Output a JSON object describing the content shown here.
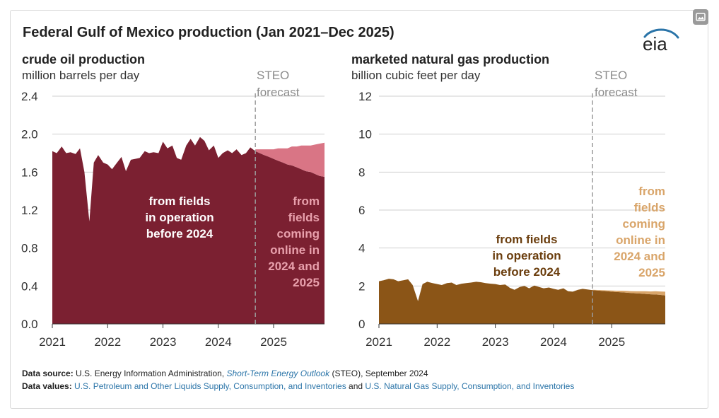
{
  "title": "Federal Gulf of Mexico production (Jan 2021–Dec 2025)",
  "logo_text": "eia",
  "forecast_label_line1": "STEO",
  "forecast_label_line2": "forecast",
  "footer": {
    "source_label": "Data source:",
    "source_text_1": "U.S. Energy Information Administration,",
    "source_italic": "Short-Term Energy Outlook",
    "source_text_2": "(STEO), September 2024",
    "values_label": "Data values:",
    "values_link_1": "U.S. Petroleum and Other Liquids Supply, Consumption, and Inventories",
    "values_and": "and",
    "values_link_2": "U.S. Natural Gas Supply, Consumption, and Inventories"
  },
  "colors": {
    "oil_existing": "#7b2031",
    "oil_new": "#d97585",
    "oil_new_text": "#e8a0ac",
    "gas_existing": "#8b5517",
    "gas_new": "#d9a56a",
    "gas_new_text": "#d9a56a",
    "gas_existing_text": "#6b3e0e",
    "grid": "#cfcfcf",
    "forecast_line": "#9b9b9b"
  },
  "chart_data": [
    {
      "type": "area",
      "title": "crude oil production",
      "ylabel": "million barrels per day",
      "ylim": [
        0,
        2.4
      ],
      "yticks": [
        "0.0",
        "0.4",
        "0.8",
        "1.2",
        "1.6",
        "2.0",
        "2.4"
      ],
      "ytick_values": [
        0,
        0.4,
        0.8,
        1.2,
        1.6,
        2.0,
        2.4
      ],
      "xlim": [
        2021.0,
        2026.0
      ],
      "xticks": [
        "2021",
        "2022",
        "2023",
        "2024",
        "2025"
      ],
      "xtick_values": [
        2021,
        2022,
        2023,
        2024,
        2025
      ],
      "forecast_start": 2024.67,
      "series": [
        {
          "name": "from fields in operation before 2024",
          "label_lines": [
            "from fields",
            "in operation",
            "before 2024"
          ],
          "x": [
            2021.0,
            2021.08,
            2021.17,
            2021.25,
            2021.33,
            2021.42,
            2021.5,
            2021.58,
            2021.67,
            2021.75,
            2021.83,
            2021.92,
            2022.0,
            2022.08,
            2022.17,
            2022.25,
            2022.33,
            2022.42,
            2022.5,
            2022.58,
            2022.67,
            2022.75,
            2022.83,
            2022.92,
            2023.0,
            2023.08,
            2023.17,
            2023.25,
            2023.33,
            2023.42,
            2023.5,
            2023.58,
            2023.67,
            2023.75,
            2023.83,
            2023.92,
            2024.0,
            2024.08,
            2024.17,
            2024.25,
            2024.33,
            2024.42,
            2024.5,
            2024.58,
            2024.67,
            2024.75,
            2024.83,
            2024.92,
            2025.0,
            2025.08,
            2025.17,
            2025.25,
            2025.33,
            2025.42,
            2025.5,
            2025.58,
            2025.67,
            2025.75,
            2025.83,
            2025.92
          ],
          "values": [
            1.82,
            1.8,
            1.87,
            1.8,
            1.81,
            1.79,
            1.85,
            1.6,
            1.08,
            1.7,
            1.78,
            1.7,
            1.68,
            1.63,
            1.7,
            1.76,
            1.61,
            1.73,
            1.74,
            1.75,
            1.82,
            1.8,
            1.81,
            1.8,
            1.92,
            1.85,
            1.88,
            1.75,
            1.73,
            1.88,
            1.95,
            1.88,
            1.97,
            1.93,
            1.83,
            1.88,
            1.75,
            1.8,
            1.83,
            1.8,
            1.84,
            1.78,
            1.8,
            1.86,
            1.82,
            1.8,
            1.78,
            1.76,
            1.74,
            1.72,
            1.7,
            1.68,
            1.67,
            1.65,
            1.63,
            1.61,
            1.6,
            1.58,
            1.56,
            1.55
          ]
        },
        {
          "name": "from fields coming online in 2024 and 2025",
          "label_lines": [
            "from",
            "fields",
            "coming",
            "online in",
            "2024 and",
            "2025"
          ],
          "x": [
            2024.67,
            2024.75,
            2024.83,
            2024.92,
            2025.0,
            2025.08,
            2025.17,
            2025.25,
            2025.33,
            2025.42,
            2025.5,
            2025.58,
            2025.67,
            2025.75,
            2025.83,
            2025.92
          ],
          "values": [
            0.02,
            0.04,
            0.06,
            0.08,
            0.1,
            0.13,
            0.15,
            0.17,
            0.2,
            0.22,
            0.25,
            0.27,
            0.28,
            0.31,
            0.34,
            0.36
          ]
        }
      ]
    },
    {
      "type": "area",
      "title": "marketed natural gas production",
      "ylabel": "billion cubic feet per day",
      "ylim": [
        0,
        12
      ],
      "yticks": [
        "0",
        "2",
        "4",
        "6",
        "8",
        "10",
        "12"
      ],
      "ytick_values": [
        0,
        2,
        4,
        6,
        8,
        10,
        12
      ],
      "xlim": [
        2021.0,
        2026.0
      ],
      "xticks": [
        "2021",
        "2022",
        "2023",
        "2024",
        "2025"
      ],
      "xtick_values": [
        2021,
        2022,
        2023,
        2024,
        2025
      ],
      "forecast_start": 2024.67,
      "series": [
        {
          "name": "from fields in operation before 2024",
          "label_lines": [
            "from fields",
            "in operation",
            "before 2024"
          ],
          "x": [
            2021.0,
            2021.08,
            2021.17,
            2021.25,
            2021.33,
            2021.42,
            2021.5,
            2021.58,
            2021.67,
            2021.75,
            2021.83,
            2021.92,
            2022.0,
            2022.08,
            2022.17,
            2022.25,
            2022.33,
            2022.42,
            2022.5,
            2022.58,
            2022.67,
            2022.75,
            2022.83,
            2022.92,
            2023.0,
            2023.08,
            2023.17,
            2023.25,
            2023.33,
            2023.42,
            2023.5,
            2023.58,
            2023.67,
            2023.75,
            2023.83,
            2023.92,
            2024.0,
            2024.08,
            2024.17,
            2024.25,
            2024.33,
            2024.42,
            2024.5,
            2024.58,
            2024.67,
            2024.75,
            2024.83,
            2024.92,
            2025.0,
            2025.08,
            2025.17,
            2025.25,
            2025.33,
            2025.42,
            2025.5,
            2025.58,
            2025.67,
            2025.75,
            2025.83,
            2025.92
          ],
          "values": [
            2.25,
            2.3,
            2.38,
            2.35,
            2.25,
            2.3,
            2.35,
            2.05,
            1.2,
            2.1,
            2.22,
            2.15,
            2.1,
            2.05,
            2.15,
            2.18,
            2.05,
            2.12,
            2.15,
            2.18,
            2.22,
            2.2,
            2.15,
            2.12,
            2.1,
            2.05,
            2.08,
            1.9,
            1.8,
            1.95,
            2.0,
            1.88,
            2.02,
            1.95,
            1.88,
            1.92,
            1.85,
            1.8,
            1.88,
            1.72,
            1.7,
            1.8,
            1.85,
            1.82,
            1.78,
            1.76,
            1.74,
            1.72,
            1.7,
            1.68,
            1.67,
            1.65,
            1.63,
            1.61,
            1.6,
            1.58,
            1.56,
            1.55,
            1.53,
            1.5
          ]
        },
        {
          "name": "from fields coming online in 2024 and 2025",
          "label_lines": [
            "from",
            "fields",
            "coming",
            "online in",
            "2024 and",
            "2025"
          ],
          "x": [
            2024.67,
            2024.75,
            2024.83,
            2024.92,
            2025.0,
            2025.08,
            2025.17,
            2025.25,
            2025.33,
            2025.42,
            2025.5,
            2025.58,
            2025.67,
            2025.75,
            2025.83,
            2025.92
          ],
          "values": [
            0.02,
            0.03,
            0.04,
            0.05,
            0.06,
            0.07,
            0.08,
            0.09,
            0.1,
            0.11,
            0.12,
            0.14,
            0.15,
            0.17,
            0.18,
            0.2
          ]
        }
      ]
    }
  ]
}
